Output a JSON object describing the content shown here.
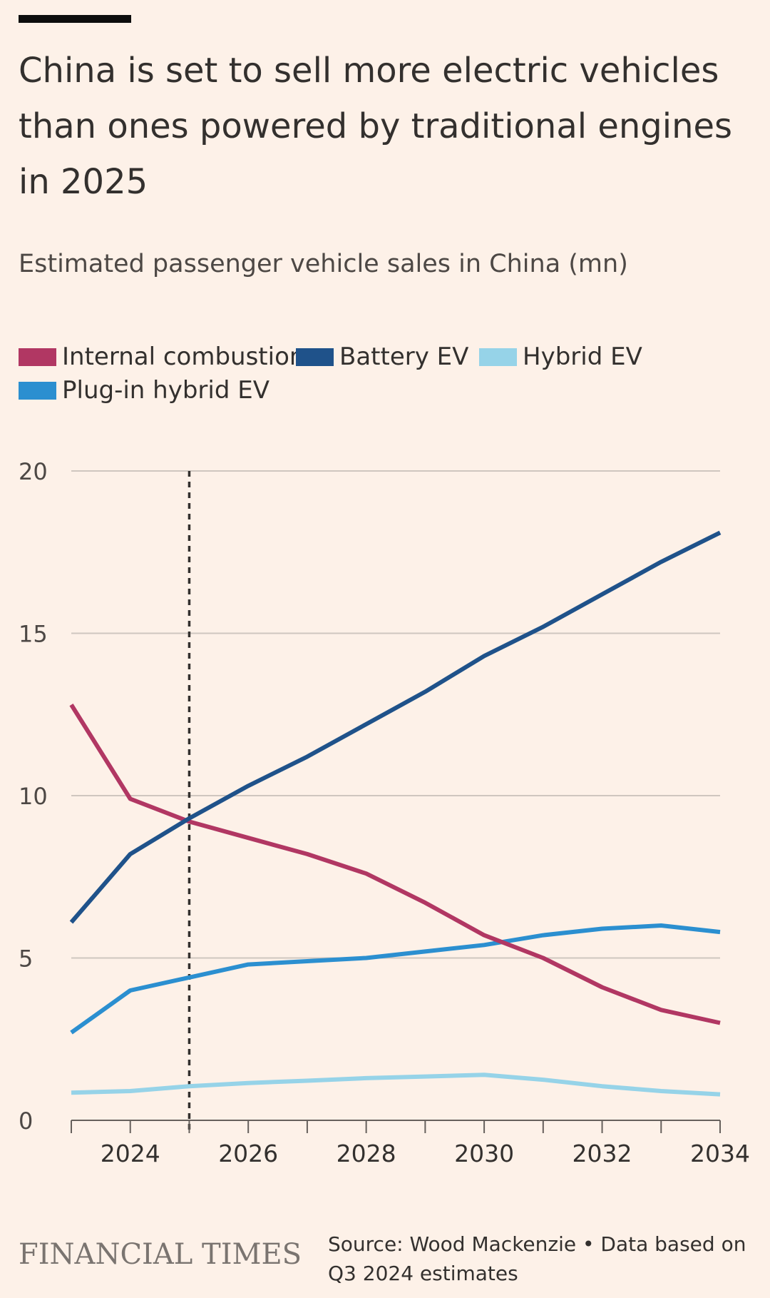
{
  "header": {
    "title": "China is set to sell more electric vehicles than ones powered by traditional engines in 2025",
    "subtitle": "Estimated passenger vehicle sales in China (mn)"
  },
  "colors": {
    "background": "#fdf1e8",
    "internal_combustion": "#b13763",
    "battery_ev": "#1f528a",
    "hybrid_ev": "#96d3e8",
    "plugin_hybrid_ev": "#2b8fd0",
    "gridline": "#cfc6bf",
    "marker": "#33302e"
  },
  "legend": [
    {
      "label": "Internal combustion",
      "color": "#b13763"
    },
    {
      "label": "Battery EV",
      "color": "#1f528a"
    },
    {
      "label": "Hybrid EV",
      "color": "#96d3e8"
    },
    {
      "label": "Plug-in hybrid EV",
      "color": "#2b8fd0"
    }
  ],
  "chart_data": {
    "type": "line",
    "title": "China is set to sell more electric vehicles than ones powered by traditional engines in 2025",
    "subtitle": "Estimated passenger vehicle sales in China (mn)",
    "xlabel": "",
    "ylabel": "",
    "x": [
      2023,
      2024,
      2025,
      2026,
      2027,
      2028,
      2029,
      2030,
      2031,
      2032,
      2033,
      2034
    ],
    "xlim": [
      2023,
      2034
    ],
    "ylim": [
      0,
      20
    ],
    "yticks": [
      0,
      5,
      10,
      15,
      20
    ],
    "xticks_labeled": [
      2024,
      2026,
      2028,
      2030,
      2032,
      2034
    ],
    "grid": true,
    "vertical_marker": {
      "x": 2025,
      "style": "dotted"
    },
    "series": [
      {
        "name": "Internal combustion",
        "color": "#b13763",
        "values": [
          12.8,
          9.9,
          9.2,
          8.7,
          8.2,
          7.6,
          6.7,
          5.7,
          5.0,
          4.1,
          3.4,
          3.0
        ]
      },
      {
        "name": "Battery EV",
        "color": "#1f528a",
        "values": [
          6.1,
          8.2,
          9.3,
          10.3,
          11.2,
          12.2,
          13.2,
          14.3,
          15.2,
          16.2,
          17.2,
          18.1
        ]
      },
      {
        "name": "Hybrid EV",
        "color": "#96d3e8",
        "values": [
          0.85,
          0.9,
          1.05,
          1.15,
          1.22,
          1.3,
          1.35,
          1.4,
          1.25,
          1.05,
          0.9,
          0.8
        ]
      },
      {
        "name": "Plug-in hybrid EV",
        "color": "#2b8fd0",
        "values": [
          2.7,
          4.0,
          4.4,
          4.8,
          4.9,
          5.0,
          5.2,
          5.4,
          5.7,
          5.9,
          6.0,
          5.8
        ]
      }
    ]
  },
  "footer": {
    "brand": "FINANCIAL TIMES",
    "source": "Source: Wood Mackenzie • Data based on Q3 2024 estimates"
  }
}
